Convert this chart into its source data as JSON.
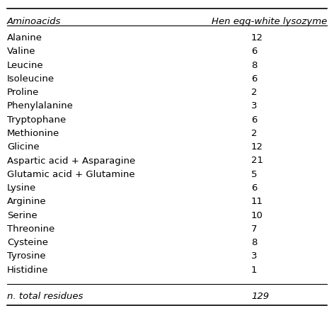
{
  "col1_header": "Aminoacids",
  "col2_header": "Hen egg-white lysozyme",
  "rows": [
    [
      "Alanine",
      "12"
    ],
    [
      "Valine",
      "6"
    ],
    [
      "Leucine",
      "8"
    ],
    [
      "Isoleucine",
      "6"
    ],
    [
      "Proline",
      "2"
    ],
    [
      "Phenylalanine",
      "3"
    ],
    [
      "Tryptophane",
      "6"
    ],
    [
      "Methionine",
      "2"
    ],
    [
      "Glicine",
      "12"
    ],
    [
      "Aspartic acid + Asparagine",
      "21"
    ],
    [
      "Glutamic acid + Glutamine",
      "5"
    ],
    [
      "Lysine",
      "6"
    ],
    [
      "Arginine",
      "11"
    ],
    [
      "Serine",
      "10"
    ],
    [
      "Threonine",
      "7"
    ],
    [
      "Cysteine",
      "8"
    ],
    [
      "Tyrosine",
      "3"
    ],
    [
      "Histidine",
      "1"
    ]
  ],
  "footer_col1": "n. total residues",
  "footer_col2": "129",
  "bg_color": "#ffffff",
  "text_color": "#000000",
  "header_fontsize": 9.5,
  "body_fontsize": 9.5,
  "footer_fontsize": 9.5
}
